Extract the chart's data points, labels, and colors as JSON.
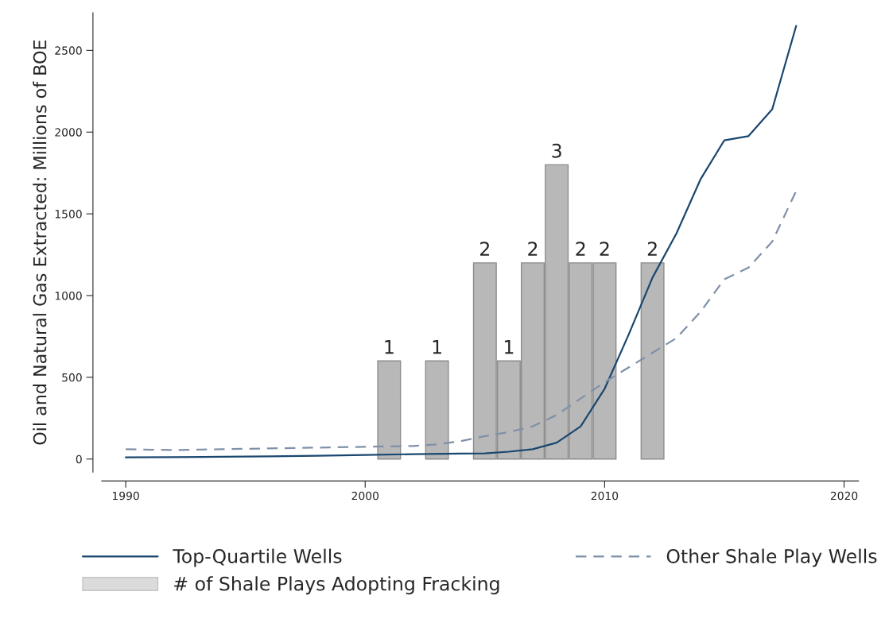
{
  "chart_data": {
    "type": "line",
    "ylabel": "Oil and Natural Gas Extracted: Millions of BOE",
    "xlim": [
      1989,
      2020.6
    ],
    "xticks": [
      1990,
      2000,
      2010,
      2020
    ],
    "ylim": [
      -80,
      2730
    ],
    "yticks": [
      0,
      500,
      1000,
      1500,
      2000,
      2500
    ],
    "grid": false,
    "legend": "bottom",
    "y2lim": [
      -0.1333,
      4.55
    ],
    "series": [
      {
        "name": "# of Shale Plays Adopting Fracking",
        "type": "bar",
        "axis": "y2",
        "color": "#b8b8b8",
        "x": [
          2001,
          2003,
          2005,
          2006,
          2007,
          2008,
          2009,
          2010,
          2012
        ],
        "values": [
          1,
          1,
          2,
          1,
          2,
          3,
          2,
          2,
          2
        ],
        "value_labels": [
          "1",
          "1",
          "2",
          "1",
          "2",
          "3",
          "2",
          "2",
          "2"
        ]
      },
      {
        "name": "Top-Quartile Wells",
        "color": "#1a476f",
        "line_style": "solid",
        "x": [
          1990,
          1992,
          1994,
          1996,
          1998,
          2000,
          2002,
          2004,
          2005,
          2006,
          2007,
          2008,
          2009,
          2010,
          2011,
          2012,
          2013,
          2014,
          2015,
          2016,
          2017,
          2018
        ],
        "values": [
          10,
          12,
          14,
          16,
          20,
          25,
          30,
          33,
          35,
          45,
          60,
          100,
          200,
          430,
          760,
          1110,
          1380,
          1710,
          1950,
          1975,
          2140,
          2650
        ]
      },
      {
        "name": "Other Shale Play Wells",
        "color": "#7f91a8",
        "line_style": "dashed",
        "x": [
          1990,
          1992,
          1994,
          1996,
          1998,
          2000,
          2002,
          2003,
          2004,
          2005,
          2006,
          2007,
          2008,
          2009,
          2010,
          2011,
          2012,
          2013,
          2014,
          2015,
          2016,
          2017,
          2018
        ],
        "values": [
          60,
          55,
          60,
          65,
          70,
          75,
          80,
          90,
          110,
          140,
          165,
          200,
          270,
          370,
          470,
          560,
          650,
          740,
          900,
          1100,
          1170,
          1330,
          1640
        ]
      }
    ]
  }
}
